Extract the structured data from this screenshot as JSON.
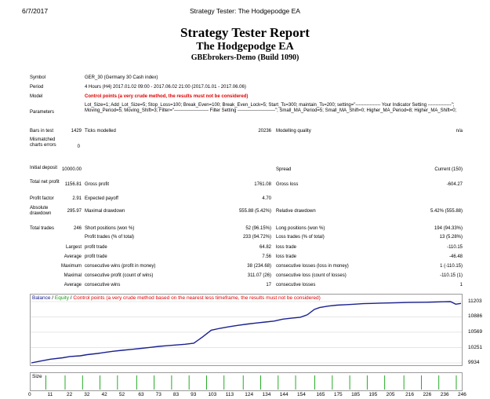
{
  "header": {
    "date": "6/7/2017",
    "window_title": "Strategy Tester: The Hodgepodge EA"
  },
  "report": {
    "title": "Strategy Tester Report",
    "ea_name": "The Hodgepodge EA",
    "broker": "GBEbrokers-Demo (Build 1090)"
  },
  "info": {
    "symbol_label": "Symbol",
    "symbol": "GER_30 (Germany 30 Cash index)",
    "period_label": "Period",
    "period": "4 Hours (H4) 2017.01.02 09:00 - 2017.06.02 21:00 (2017.01.01 - 2017.06.06)",
    "model_label": "Model",
    "model": "Control points (a very crude method, the results must not be considered)",
    "parameters_label": "Parameters",
    "parameters": "Lot_Size=1; Add_Lot_Size=5; Stop_Loss=100; Break_Even=100; Break_Even_Lock=5; Start_Ts=300; maintain_Ts=200; setting=\"---------------- Your Indicator Setting ---------------\"; Moving_Period=5; Moving_Shift=3; Filter=\"---------------------- Filter Setting ------------------------\"; Small_MA_Period=5; Small_MA_Shift=0; Higher_MA_Period=8; Higher_MA_Shift=0;",
    "bars_label": "Bars in test",
    "bars": "1429",
    "ticks_label": "Ticks modelled",
    "ticks": "20236",
    "quality_label": "Modelling quality",
    "quality": "n/a",
    "mismatched_label": "Mismatched charts errors",
    "mismatched": "0"
  },
  "stats": {
    "initial_deposit_label": "Initial deposit",
    "initial_deposit": "10000.00",
    "spread_label": "Spread",
    "spread": "Current (150)",
    "net_profit_label": "Total net profit",
    "net_profit": "1156.81",
    "gross_profit_label": "Gross profit",
    "gross_profit": "1761.08",
    "gross_loss_label": "Gross loss",
    "gross_loss": "-604.27",
    "profit_factor_label": "Profit factor",
    "profit_factor": "2.91",
    "expected_payoff_label": "Expected payoff",
    "expected_payoff": "4.70",
    "abs_dd_label": "Absolute drawdown",
    "abs_dd": "295.97",
    "max_dd_label": "Maximal drawdown",
    "max_dd": "555.88 (5.42%)",
    "rel_dd_label": "Relative drawdown",
    "rel_dd": "5.42% (555.88)",
    "total_trades_label": "Total trades",
    "total_trades": "246",
    "short_label": "Short positions (won %)",
    "short": "52 (96.15%)",
    "long_label": "Long positions (won %)",
    "long": "194 (94.33%)",
    "profit_trades_label": "Profit trades (% of total)",
    "profit_trades": "233 (94.72%)",
    "loss_trades_label": "Loss trades (% of total)",
    "loss_trades": "13 (5.28%)",
    "largest_label": "Largest",
    "largest_profit_label": "profit trade",
    "largest_profit": "64.82",
    "largest_loss_label": "loss trade",
    "largest_loss": "-110.15",
    "average_label": "Average",
    "avg_profit_label": "profit trade",
    "avg_profit": "7.56",
    "avg_loss_label": "loss trade",
    "avg_loss": "-46.48",
    "maximum_label": "Maximum",
    "max_cons_wins_label": "consecutive wins (profit in money)",
    "max_cons_wins": "38 (234.68)",
    "max_cons_losses_label": "consecutive losses (loss in money)",
    "max_cons_losses": "1 (-110.15)",
    "maximal_label": "Maximal",
    "maximal_cons_profit_label": "consecutive profit (count of wins)",
    "maximal_cons_profit": "311.07 (26)",
    "maximal_cons_loss_label": "consecutive loss (count of losses)",
    "maximal_cons_loss": "-110.15 (1)",
    "average2_label": "Average",
    "avg_cons_wins_label": "consecutive wins",
    "avg_cons_wins": "17",
    "avg_cons_losses_label": "consecutive losses",
    "avg_cons_losses": "1"
  },
  "chart": {
    "legend_balance": "Balance",
    "legend_sep1": " / ",
    "legend_equity": "Equity",
    "legend_sep2": " / ",
    "legend_control": "Control points (a very crude method based on the nearest less timeframe, the results must not be considered)",
    "size_label": "Size",
    "colors": {
      "balance": "#1a2090",
      "equity": "#10a010",
      "size_bar": "#10a010"
    }
  },
  "chart_data": {
    "type": "line",
    "title": "",
    "y_ticks": [
      "11203",
      "10886",
      "10569",
      "10251",
      "9934"
    ],
    "x_ticks": [
      "0",
      "11",
      "22",
      "32",
      "42",
      "52",
      "63",
      "73",
      "83",
      "93",
      "103",
      "113",
      "124",
      "134",
      "144",
      "154",
      "165",
      "175",
      "185",
      "195",
      "205",
      "216",
      "226",
      "236",
      "246"
    ],
    "ylim": [
      9934,
      11203
    ],
    "xlim": [
      0,
      246
    ],
    "series": [
      {
        "name": "Balance",
        "values": [
          [
            0,
            9934
          ],
          [
            5,
            9970
          ],
          [
            11,
            10010
          ],
          [
            18,
            10040
          ],
          [
            22,
            10065
          ],
          [
            28,
            10080
          ],
          [
            32,
            10105
          ],
          [
            38,
            10130
          ],
          [
            42,
            10150
          ],
          [
            47,
            10175
          ],
          [
            52,
            10195
          ],
          [
            58,
            10215
          ],
          [
            63,
            10235
          ],
          [
            68,
            10255
          ],
          [
            73,
            10275
          ],
          [
            78,
            10290
          ],
          [
            83,
            10305
          ],
          [
            88,
            10320
          ],
          [
            93,
            10340
          ],
          [
            98,
            10470
          ],
          [
            103,
            10610
          ],
          [
            108,
            10650
          ],
          [
            113,
            10680
          ],
          [
            118,
            10710
          ],
          [
            124,
            10740
          ],
          [
            129,
            10760
          ],
          [
            134,
            10780
          ],
          [
            139,
            10800
          ],
          [
            144,
            10840
          ],
          [
            149,
            10860
          ],
          [
            154,
            10880
          ],
          [
            158,
            10930
          ],
          [
            162,
            11040
          ],
          [
            165,
            11080
          ],
          [
            170,
            11110
          ],
          [
            175,
            11130
          ],
          [
            180,
            11140
          ],
          [
            185,
            11150
          ],
          [
            190,
            11160
          ],
          [
            195,
            11165
          ],
          [
            200,
            11172
          ],
          [
            205,
            11176
          ],
          [
            210,
            11180
          ],
          [
            216,
            11185
          ],
          [
            221,
            11188
          ],
          [
            226,
            11190
          ],
          [
            231,
            11195
          ],
          [
            236,
            11200
          ],
          [
            240,
            11203
          ],
          [
            243,
            11150
          ],
          [
            246,
            11165
          ]
        ]
      }
    ]
  }
}
